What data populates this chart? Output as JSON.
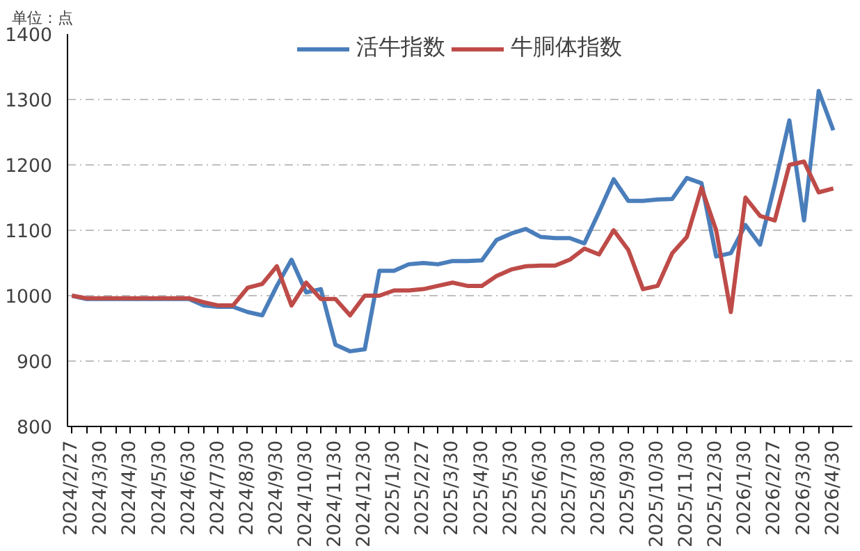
{
  "chart_data": {
    "type": "line",
    "annotations": [
      "单位：点"
    ],
    "categories": [
      "2024/2/27",
      null,
      "2024/3/30",
      null,
      "2024/4/30",
      null,
      "2024/5/30",
      null,
      "2024/6/30",
      null,
      "2024/7/30",
      null,
      "2024/8/30",
      null,
      "2024/9/30",
      null,
      "2024/10/30",
      null,
      "2024/11/30",
      null,
      "2024/12/30",
      null,
      "2025/1/30",
      null,
      "2025/2/27",
      null,
      "2025/3/30",
      null,
      "2025/4/30",
      null,
      "2025/5/30",
      null,
      "2025/6/30",
      null,
      "2025/7/30",
      null,
      "2025/8/30",
      null,
      "2025/9/30",
      null,
      "2025/10/30",
      null,
      "2025/11/30",
      null,
      "2025/12/30",
      null,
      "2026/1/30",
      null,
      "2026/2/27",
      null,
      "2026/3/30",
      null,
      "2026/4/30"
    ],
    "series": [
      {
        "name": "活牛指数",
        "color": "#4a7ebb",
        "values": [
          1000,
          995,
          995,
          995,
          995,
          995,
          995,
          995,
          995,
          985,
          983,
          983,
          975,
          970,
          1015,
          1055,
          1005,
          1010,
          925,
          915,
          918,
          1038,
          1038,
          1048,
          1050,
          1048,
          1053,
          1053,
          1054,
          1085,
          1095,
          1102,
          1090,
          1088,
          1088,
          1080,
          1128,
          1178,
          1145,
          1145,
          1147,
          1148,
          1180,
          1172,
          1060,
          1065,
          1108,
          1078,
          1170,
          1268,
          1115,
          1313,
          1253
        ]
      },
      {
        "name": "牛胴体指数",
        "color": "#be4b48",
        "values": [
          1000,
          996,
          996,
          996,
          996,
          996,
          996,
          996,
          996,
          990,
          985,
          985,
          1012,
          1018,
          1045,
          985,
          1020,
          995,
          995,
          970,
          1000,
          1000,
          1008,
          1008,
          1010,
          1015,
          1020,
          1015,
          1015,
          1030,
          1040,
          1045,
          1046,
          1046,
          1055,
          1072,
          1063,
          1100,
          1070,
          1010,
          1015,
          1065,
          1090,
          1165,
          1100,
          975,
          1150,
          1122,
          1115,
          1200,
          1205,
          1158,
          1164
        ]
      }
    ],
    "ylim": [
      800,
      1400
    ],
    "yticks": [
      800,
      900,
      1000,
      1100,
      1200,
      1300,
      1400
    ],
    "grid": "y",
    "legend": "top"
  }
}
